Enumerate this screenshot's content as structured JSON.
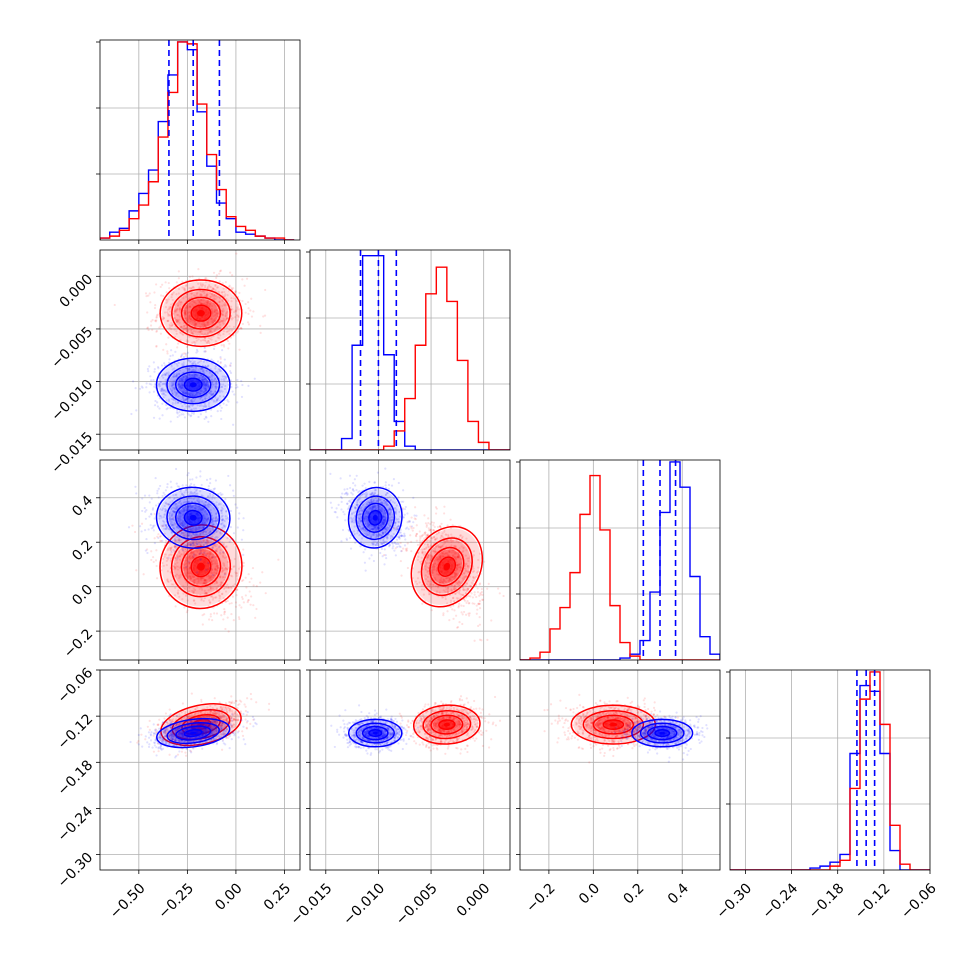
{
  "chart_data": {
    "type": "corner",
    "grid": true,
    "colors": {
      "series_blue": "#0000ff",
      "series_red": "#ff0000",
      "grid": "#b0b0b0"
    },
    "series": [
      {
        "color": "blue"
      },
      {
        "color": "red"
      }
    ],
    "parameters": [
      {
        "range": [
          -0.7,
          0.33
        ],
        "ticks": [
          -0.5,
          -0.25,
          0.0,
          0.25
        ],
        "tick_labels": [
          "−0.50",
          "−0.25",
          "0.00",
          "0.25"
        ],
        "hist_ymax": 1.03,
        "hist_bins": [
          -0.7,
          -0.65,
          -0.6,
          -0.55,
          -0.5,
          -0.45,
          -0.4,
          -0.35,
          -0.3,
          -0.25,
          -0.2,
          -0.15,
          -0.1,
          -0.05,
          0.0,
          0.05,
          0.1,
          0.15,
          0.2,
          0.25,
          0.3
        ],
        "hist_counts": {
          "blue": [
            0.01,
            0.04,
            0.06,
            0.15,
            0.24,
            0.36,
            0.61,
            0.85,
            1.02,
            0.98,
            0.66,
            0.38,
            0.19,
            0.11,
            0.04,
            0.03,
            0.02,
            0.01,
            0.0,
            0.0
          ],
          "red": [
            0.01,
            0.02,
            0.05,
            0.11,
            0.18,
            0.3,
            0.53,
            0.76,
            1.02,
            1.01,
            0.7,
            0.44,
            0.26,
            0.12,
            0.07,
            0.05,
            0.02,
            0.01,
            0.01,
            0.0
          ]
        },
        "quantiles_blue": [
          -0.345,
          -0.22,
          -0.085
        ]
      },
      {
        "range": [
          -0.0165,
          0.0025
        ],
        "ticks": [
          -0.015,
          -0.01,
          -0.005,
          0.0
        ],
        "tick_labels": [
          "−0.015",
          "−0.010",
          "−0.005",
          "0.000"
        ],
        "hist_ymax": 1.05,
        "hist_bins": [
          -0.0165,
          -0.0155,
          -0.0145,
          -0.0135,
          -0.0125,
          -0.0115,
          -0.0105,
          -0.0095,
          -0.0085,
          -0.0075,
          -0.0065,
          -0.0055,
          -0.0045,
          -0.0035,
          -0.0025,
          -0.0015,
          -0.0005,
          0.0005,
          0.0015,
          0.0025
        ],
        "hist_counts": {
          "blue": [
            0.0,
            0.0,
            0.0,
            0.06,
            0.55,
            1.02,
            1.02,
            0.5,
            0.15,
            0.02,
            0.0,
            0.0,
            0.0,
            0.0,
            0.0,
            0.0,
            0.0,
            0.0,
            0.0
          ],
          "red": [
            0.0,
            0.0,
            0.0,
            0.0,
            0.0,
            0.0,
            0.0,
            0.02,
            0.1,
            0.27,
            0.55,
            0.82,
            0.96,
            0.78,
            0.47,
            0.15,
            0.04,
            0.0,
            0.0
          ]
        },
        "quantiles_blue": [
          -0.0117,
          -0.01,
          -0.0083
        ]
      },
      {
        "range": [
          -0.33,
          0.57
        ],
        "ticks": [
          -0.2,
          0.0,
          0.2,
          0.4
        ],
        "tick_labels": [
          "−0.2",
          "0.0",
          "0.2",
          "0.4"
        ],
        "hist_ymax": 1.03,
        "hist_bins": [
          -0.33,
          -0.285,
          -0.24,
          -0.195,
          -0.15,
          -0.105,
          -0.06,
          -0.015,
          0.03,
          0.075,
          0.12,
          0.165,
          0.21,
          0.255,
          0.3,
          0.345,
          0.39,
          0.435,
          0.48,
          0.525,
          0.57
        ],
        "hist_counts": {
          "blue": [
            0.0,
            0.0,
            0.0,
            0.0,
            0.0,
            0.0,
            0.0,
            0.0,
            0.0,
            0.0,
            0.01,
            0.03,
            0.1,
            0.35,
            0.76,
            1.02,
            0.89,
            0.43,
            0.12,
            0.03
          ],
          "red": [
            0.0,
            0.01,
            0.04,
            0.16,
            0.27,
            0.45,
            0.75,
            0.95,
            0.67,
            0.28,
            0.09,
            0.02,
            0.0,
            0.0,
            0.0,
            0.0,
            0.0,
            0.0,
            0.0,
            0.0
          ]
        },
        "quantiles_blue": [
          0.225,
          0.3,
          0.37
        ]
      },
      {
        "range": [
          -0.32,
          -0.06
        ],
        "ticks": [
          -0.3,
          -0.24,
          -0.18,
          -0.12,
          -0.06
        ],
        "tick_labels": [
          "−0.30",
          "−0.24",
          "−0.18",
          "−0.12",
          "−0.06"
        ],
        "hist_ymax": 1.03,
        "hist_bins": [
          -0.32,
          -0.307,
          -0.294,
          -0.281,
          -0.268,
          -0.255,
          -0.242,
          -0.229,
          -0.216,
          -0.203,
          -0.19,
          -0.177,
          -0.164,
          -0.151,
          -0.138,
          -0.125,
          -0.112,
          -0.099,
          -0.086,
          -0.073,
          -0.06
        ],
        "hist_counts": {
          "blue": [
            0.0,
            0.0,
            0.0,
            0.0,
            0.0,
            0.0,
            0.0,
            0.0,
            0.01,
            0.02,
            0.04,
            0.08,
            0.6,
            0.95,
            0.92,
            0.6,
            0.1,
            0.0,
            0.0,
            0.0
          ],
          "red": [
            0.0,
            0.0,
            0.0,
            0.0,
            0.0,
            0.0,
            0.0,
            0.0,
            0.0,
            0.0,
            0.02,
            0.05,
            0.42,
            0.88,
            1.02,
            0.75,
            0.23,
            0.03,
            0.0,
            0.0
          ]
        },
        "quantiles_blue": [
          -0.155,
          -0.143,
          -0.132
        ]
      }
    ],
    "clouds": {
      "blue": {
        "mean": [
          -0.22,
          -0.0103,
          0.31,
          -0.142
        ],
        "sd": [
          0.09,
          0.0012,
          0.065,
          0.0085
        ]
      },
      "red": {
        "mean": [
          -0.18,
          -0.0035,
          0.09,
          -0.131
        ],
        "sd": [
          0.1,
          0.0015,
          0.09,
          0.012
        ]
      }
    }
  }
}
